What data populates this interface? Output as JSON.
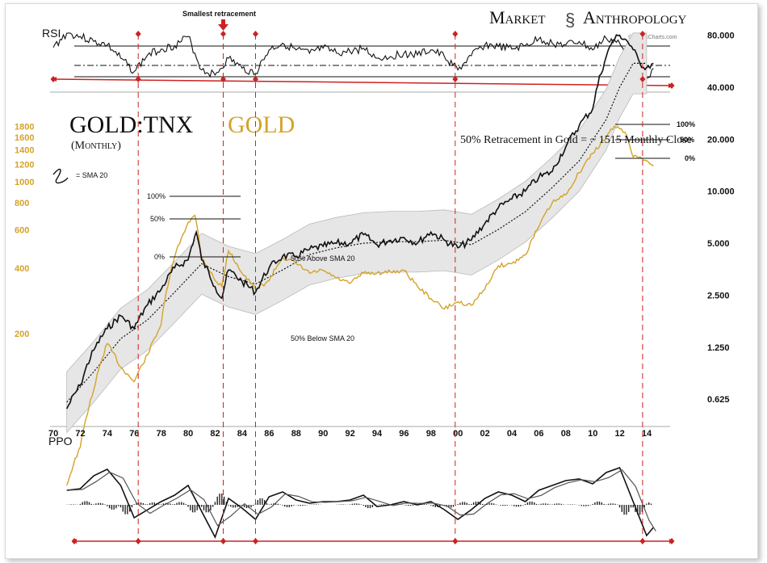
{
  "chart_data": {
    "type": "line",
    "title": "GOLD:TNX",
    "title_overlay": "GOLD",
    "subtitle": "(Monthly)",
    "brand": {
      "left": "Market",
      "right": "Anthropology"
    },
    "watermark": "© StockCharts.com",
    "legend": {
      "sma_label": "= SMA 20"
    },
    "colors": {
      "ratio": "#111111",
      "gold": "#d4a32a",
      "band": "#e6e6e6",
      "marker": "#cc2222",
      "text": "#222222"
    },
    "x_axis": {
      "range": [
        1970,
        2015.5
      ],
      "ticks": [
        "70",
        "72",
        "74",
        "76",
        "78",
        "80",
        "82",
        "84",
        "86",
        "88",
        "90",
        "92",
        "94",
        "96",
        "98",
        "00",
        "02",
        "04",
        "06",
        "08",
        "10",
        "12",
        "14"
      ]
    },
    "left_axis": {
      "label": "Gold",
      "ticks": [
        "1800",
        "1600",
        "1400",
        "1200",
        "1000",
        "800",
        "600",
        "400",
        "200"
      ],
      "values": [
        1800,
        1600,
        1400,
        1200,
        1000,
        800,
        600,
        400,
        200
      ]
    },
    "right_axis": {
      "label": "GOLD:TNX",
      "ticks": [
        "80.000",
        "40.000",
        "20.000",
        "10.000",
        "5.000",
        "2.500",
        "1.250",
        "0.625"
      ],
      "values": [
        80,
        40,
        20,
        10,
        5,
        2.5,
        1.25,
        0.625
      ]
    },
    "series": [
      {
        "name": "GOLD:TNX",
        "x": [
          1971,
          1972,
          1973,
          1974,
          1975,
          1976,
          1977,
          1978,
          1979,
          1980,
          1980.6,
          1981,
          1982,
          1982.5,
          1983,
          1984,
          1985,
          1986,
          1987,
          1988,
          1989,
          1990,
          1991,
          1992,
          1993,
          1994,
          1995,
          1996,
          1997,
          1998,
          1999,
          2000,
          2001,
          2002,
          2003,
          2004,
          2005,
          2006,
          2007,
          2008,
          2009,
          2010,
          2011,
          2011.5,
          2012,
          2012.5,
          2013,
          2013.5,
          2014,
          2014.5
        ],
        "y": [
          0.55,
          0.75,
          1.2,
          1.6,
          1.9,
          1.6,
          2.2,
          2.7,
          3.6,
          4.0,
          5.8,
          4.0,
          2.8,
          2.4,
          3.5,
          3.0,
          2.6,
          3.6,
          4.2,
          4.2,
          4.6,
          4.8,
          5.0,
          5.0,
          5.6,
          4.9,
          5.2,
          5.4,
          5.0,
          5.8,
          5.2,
          4.7,
          5.2,
          6.5,
          8.0,
          9.0,
          10.0,
          12.0,
          13.0,
          18.0,
          24.0,
          30.0,
          60.0,
          75.0,
          80.0,
          75.0,
          66.0,
          55.0,
          52.0,
          55.0
        ]
      },
      {
        "name": "Gold",
        "x": [
          1971,
          1972,
          1973,
          1974,
          1975,
          1976,
          1977,
          1978,
          1979,
          1980,
          1980.5,
          1981,
          1982,
          1982.5,
          1983,
          1984,
          1985,
          1986,
          1987,
          1988,
          1989,
          1990,
          1991,
          1992,
          1993,
          1994,
          1995,
          1996,
          1997,
          1998,
          1999,
          2000,
          2001,
          2002,
          2003,
          2004,
          2005,
          2006,
          2007,
          2008,
          2009,
          2010,
          2011,
          2011.6,
          2012,
          2012.5,
          2013,
          2013.5,
          2014,
          2014.5
        ],
        "y": [
          40,
          60,
          110,
          180,
          140,
          120,
          160,
          220,
          450,
          650,
          700,
          450,
          350,
          330,
          480,
          380,
          320,
          350,
          450,
          420,
          380,
          390,
          360,
          340,
          380,
          380,
          385,
          390,
          330,
          290,
          260,
          280,
          270,
          320,
          410,
          420,
          460,
          620,
          800,
          870,
          1100,
          1350,
          1600,
          1800,
          1750,
          1650,
          1300,
          1300,
          1250,
          1180
        ]
      },
      {
        "name": "SMA 20",
        "x": [
          1971,
          1973,
          1975,
          1977,
          1979,
          1981,
          1983,
          1985,
          1987,
          1989,
          1991,
          1993,
          1995,
          1997,
          1999,
          2001,
          2003,
          2005,
          2007,
          2009,
          2011,
          2012,
          2013,
          2014
        ],
        "y": [
          0.6,
          0.9,
          1.4,
          1.8,
          2.6,
          3.8,
          3.2,
          2.9,
          3.5,
          4.3,
          4.7,
          5.0,
          5.1,
          5.1,
          5.2,
          4.9,
          6.0,
          7.6,
          10.5,
          15.0,
          26.0,
          40.0,
          55.0,
          55.0
        ]
      }
    ],
    "band": {
      "upper_label": "50% Above SMA 20",
      "lower_label": "50% Below SMA 20",
      "ratio": 1.5
    },
    "fib_1980": {
      "levels": [
        "100%",
        "50%",
        "0%"
      ]
    },
    "fib_2012": {
      "levels": [
        "100%",
        "50%",
        "0%"
      ]
    },
    "retracement_note": "50% Retracement in Gold = ~ 1515 Monthly Close",
    "retracement_value": 1515,
    "rsi": {
      "label": "RSI",
      "annotation": "Smallest retracement",
      "x": [
        1970,
        1971,
        1972,
        1973,
        1974,
        1975,
        1976,
        1977,
        1978,
        1979,
        1980,
        1981,
        1982,
        1983,
        1984,
        1985,
        1986,
        1987,
        1988,
        1989,
        1990,
        1991,
        1992,
        1993,
        1994,
        1995,
        1996,
        1997,
        1998,
        1999,
        2000,
        2001,
        2002,
        2003,
        2004,
        2005,
        2006,
        2007,
        2008,
        2009,
        2010,
        2011,
        2012,
        2013,
        2014,
        2014.5
      ],
      "y": [
        65,
        82,
        78,
        72,
        68,
        52,
        36,
        56,
        63,
        67,
        78,
        38,
        32,
        52,
        40,
        34,
        62,
        70,
        62,
        58,
        64,
        58,
        60,
        64,
        52,
        54,
        58,
        56,
        62,
        54,
        38,
        55,
        68,
        66,
        63,
        67,
        75,
        70,
        68,
        72,
        62,
        76,
        70,
        30,
        28,
        40
      ]
    },
    "ppo": {
      "label": "PPO",
      "x": [
        1971,
        1972,
        1973,
        1974,
        1975,
        1976,
        1977,
        1978,
        1979,
        1980,
        1981,
        1982,
        1983,
        1984,
        1985,
        1986,
        1987,
        1988,
        1989,
        1990,
        1991,
        1992,
        1993,
        1994,
        1995,
        1996,
        1997,
        1998,
        1999,
        2000,
        2001,
        2002,
        2003,
        2004,
        2005,
        2006,
        2007,
        2008,
        2009,
        2010,
        2011,
        2012,
        2013,
        2014,
        2014.5
      ],
      "y": [
        0.9,
        1.0,
        1.8,
        2.2,
        1.2,
        -0.8,
        -0.3,
        0.2,
        0.6,
        1.2,
        -0.4,
        -2.0,
        0.4,
        -0.2,
        -0.9,
        0.5,
        0.8,
        0.3,
        0.1,
        0.2,
        0.2,
        0.3,
        0.6,
        -0.1,
        0.0,
        0.2,
        0.0,
        0.2,
        -0.3,
        -0.9,
        -0.3,
        0.4,
        0.8,
        0.6,
        0.2,
        0.9,
        1.2,
        1.5,
        1.6,
        1.3,
        2.0,
        2.3,
        0.2,
        -1.9,
        -1.4
      ]
    },
    "markers": {
      "years": [
        1976.3,
        1982.6,
        1985.0,
        1999.8,
        2013.7
      ]
    }
  }
}
